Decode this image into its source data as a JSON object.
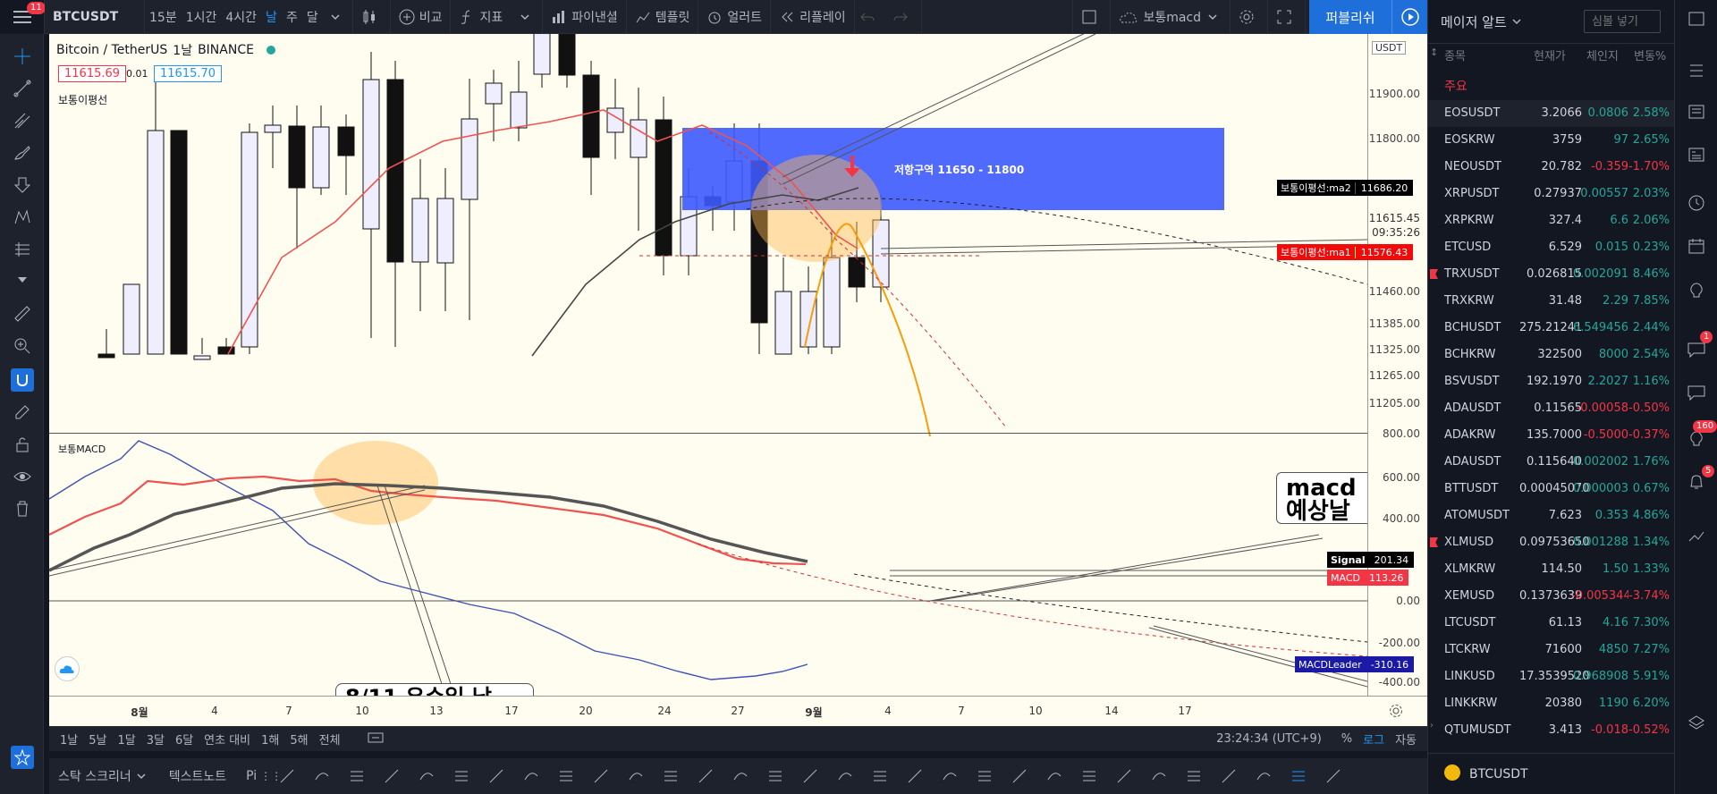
{
  "topbar": {
    "menu_badge": "11",
    "symbol": "BTCUSDT",
    "intervals": [
      "15분",
      "1시간",
      "4시간",
      "날",
      "주",
      "달"
    ],
    "compare": "비교",
    "indicators": "지표",
    "financials": "파이낸셜",
    "templates": "템플릿",
    "alerts": "얼러트",
    "replay": "리플레이",
    "layout_name": "보통macd",
    "publish": "퍼블리쉬"
  },
  "legend": {
    "title": "Bitcoin / TetherUS",
    "interval": "1날",
    "exchange": "BINANCE",
    "bid": "11615.69",
    "spread": "0.01",
    "ask": "11615.70",
    "ma_label": "보통이평선",
    "macd_label": "보통MACD"
  },
  "annotations": {
    "resistance": "저항구역 11650 - 11800",
    "macd_note_1": "macd",
    "macd_note_2": "예상날",
    "bottom_note": "8/11 우수일 남"
  },
  "price_axis": {
    "currency": "USDT",
    "ticks": [
      "11900.00",
      "11800.00",
      "11460.00",
      "11385.00",
      "11325.00",
      "11265.00",
      "11205.00"
    ],
    "last_price": "11615.45",
    "countdown": "09:35:26",
    "ma2_label": "보통이평선:ma2",
    "ma2_value": "11686.20",
    "ma1_label": "보통이평선:ma1",
    "ma1_value": "11576.43"
  },
  "macd_axis": {
    "ticks": [
      "800.00",
      "600.00",
      "400.00",
      "0.00",
      "-200.00",
      "-400.00"
    ],
    "signal_label": "Signal",
    "signal_value": "201.34",
    "macd_label": "MACD",
    "macd_value": "113.26",
    "leader_label": "MACDLeader",
    "leader_value": "-310.16"
  },
  "time_axis": [
    "8월",
    "4",
    "7",
    "10",
    "13",
    "17",
    "20",
    "24",
    "27",
    "9월",
    "4",
    "7",
    "10",
    "14",
    "17"
  ],
  "timebar": {
    "ranges": [
      "1날",
      "5날",
      "1달",
      "3달",
      "6달",
      "연초 대비",
      "1해",
      "5해",
      "전체"
    ],
    "clock": "23:24:34 (UTC+9)",
    "percent": "%",
    "log": "로그",
    "auto": "자동"
  },
  "drawbar": {
    "screener": "스탁 스크리너",
    "textnote": "텍스트노트",
    "pine": "Pi"
  },
  "watchlist": {
    "title": "메이저 알트",
    "search_placeholder": "심볼 넣기",
    "col_symbol": "종목",
    "col_last": "현재가",
    "col_chg": "체인지",
    "col_chgp": "변동%",
    "section": "주요",
    "rows": [
      {
        "s": "EOSUSDT",
        "l": "3.2066",
        "c": "0.0806",
        "p": "2.58%",
        "up": true
      },
      {
        "s": "EOSKRW",
        "l": "3759",
        "c": "97",
        "p": "2.65%",
        "up": true
      },
      {
        "s": "NEOUSDT",
        "l": "20.782",
        "c": "-0.359",
        "p": "-1.70%",
        "up": false
      },
      {
        "s": "XRPUSDT",
        "l": "0.27937",
        "c": "0.00557",
        "p": "2.03%",
        "up": true
      },
      {
        "s": "XRPKRW",
        "l": "327.4",
        "c": "6.6",
        "p": "2.06%",
        "up": true
      },
      {
        "s": "ETCUSD",
        "l": "6.529",
        "c": "0.015",
        "p": "0.23%",
        "up": true
      },
      {
        "s": "TRXUSDT",
        "l": "0.026815",
        "c": "0.002091",
        "p": "8.46%",
        "up": true
      },
      {
        "s": "TRXKRW",
        "l": "31.48",
        "c": "2.29",
        "p": "7.85%",
        "up": true
      },
      {
        "s": "BCHUSDT",
        "l": "275.21241",
        "c": "6.549456",
        "p": "2.44%",
        "up": true
      },
      {
        "s": "BCHKRW",
        "l": "322500",
        "c": "8000",
        "p": "2.54%",
        "up": true
      },
      {
        "s": "BSVUSDT",
        "l": "192.1970",
        "c": "2.2027",
        "p": "1.16%",
        "up": true
      },
      {
        "s": "ADAUSDT",
        "l": "0.11565",
        "c": "-0.00058",
        "p": "-0.50%",
        "up": false
      },
      {
        "s": "ADAKRW",
        "l": "135.7000",
        "c": "-0.5000",
        "p": "-0.37%",
        "up": false
      },
      {
        "s": "ADAUSDT",
        "l": "0.115640",
        "c": "0.002002",
        "p": "1.76%",
        "up": true
      },
      {
        "s": "BTTUSDT",
        "l": "0.00045070",
        "c": "0.000003",
        "p": "0.67%",
        "up": true
      },
      {
        "s": "ATOMUSDT",
        "l": "7.623",
        "c": "0.353",
        "p": "4.86%",
        "up": true
      },
      {
        "s": "XLMUSD",
        "l": "0.09753650",
        "c": "0.001288",
        "p": "1.34%",
        "up": true
      },
      {
        "s": "XLMKRW",
        "l": "114.50",
        "c": "1.50",
        "p": "1.33%",
        "up": true
      },
      {
        "s": "XEMUSD",
        "l": "0.1373639",
        "c": "-0.005344",
        "p": "-3.74%",
        "up": false
      },
      {
        "s": "LTCUSDT",
        "l": "61.13",
        "c": "4.16",
        "p": "7.30%",
        "up": true
      },
      {
        "s": "LTCKRW",
        "l": "71600",
        "c": "4850",
        "p": "7.27%",
        "up": true
      },
      {
        "s": "LINKUSD",
        "l": "17.3539520",
        "c": "0.968908",
        "p": "5.91%",
        "up": true
      },
      {
        "s": "LINKKRW",
        "l": "20380",
        "c": "1190",
        "p": "6.20%",
        "up": true
      },
      {
        "s": "QTUMUSDT",
        "l": "3.413",
        "c": "-0.018",
        "p": "-0.52%",
        "up": false
      }
    ],
    "bottom_symbol": "BTCUSDT"
  },
  "iconbar": {
    "badge_chat": "1",
    "badge_ideas": "160",
    "badge_notif": "5"
  }
}
